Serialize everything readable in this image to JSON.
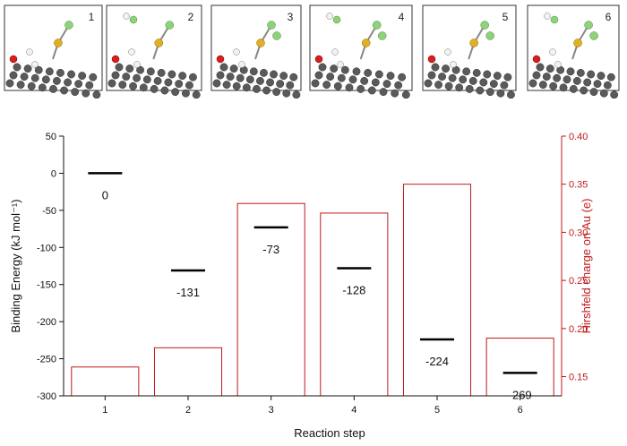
{
  "panels": [
    {
      "label": "1"
    },
    {
      "label": "2"
    },
    {
      "label": "3"
    },
    {
      "label": "4"
    },
    {
      "label": "5"
    },
    {
      "label": "6"
    }
  ],
  "colors": {
    "bar_stroke": "#c0181b",
    "right_axis": "#c0181b",
    "left_axis": "#111111",
    "energy_line": "#000000",
    "carbon": "#5a5a5a",
    "hydrogen": "#f2f2f2",
    "oxygen": "#d81e1e",
    "gold": "#e0b020",
    "chlorine": "#8ed27a"
  },
  "chart_data": {
    "type": "bar",
    "xlabel": "Reaction step",
    "ylabel_left": "Binding Energy (kJ mol⁻¹)",
    "ylabel_right": "Hirshfeld charge on Au (e)",
    "categories": [
      "1",
      "2",
      "3",
      "4",
      "5",
      "6"
    ],
    "ylim_left": [
      -300,
      50
    ],
    "ylim_right": [
      0.13,
      0.4
    ],
    "yticks_left": [
      "50",
      "0",
      "-50",
      "-100",
      "-150",
      "-200",
      "-250",
      "-300"
    ],
    "yticks_right": [
      "0.40",
      "0.35",
      "0.30",
      "0.25",
      "0.20",
      "0.15"
    ],
    "grid": false,
    "series": [
      {
        "axis": "right",
        "mark": "bar",
        "values": [
          0.16,
          0.18,
          0.33,
          0.32,
          0.35,
          0.19
        ]
      },
      {
        "axis": "left",
        "mark": "level-line",
        "values": [
          0,
          -131,
          -73,
          -128,
          -224,
          -269
        ],
        "labels": [
          "0",
          "-131",
          "-73",
          "-128",
          "-224",
          "-269"
        ]
      }
    ]
  }
}
